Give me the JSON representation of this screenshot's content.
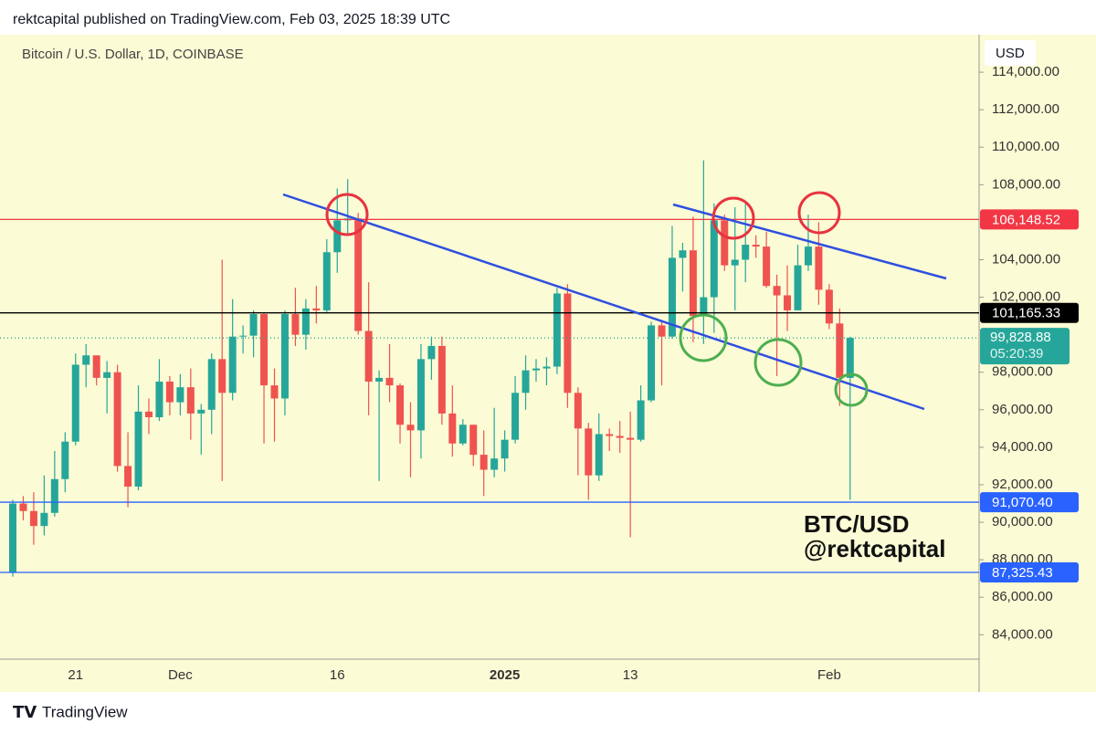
{
  "header": "rektcapital published on TradingView.com, Feb 03, 2025 18:39 UTC",
  "footer": "TradingView",
  "chart_data": {
    "type": "candlestick",
    "title": "Bitcoin / U.S. Dollar, 1D, COINBASE",
    "currency": "USD",
    "annotations": [
      "BTC/USD",
      "@rektcapital"
    ],
    "up_color": "#26a69a",
    "down_color": "#ef5350",
    "categories": [
      null,
      null,
      null,
      null,
      null,
      null,
      "21",
      null,
      null,
      null,
      null,
      null,
      null,
      null,
      null,
      null,
      "Dec",
      null,
      null,
      null,
      null,
      null,
      null,
      null,
      null,
      null,
      null,
      null,
      null,
      null,
      null,
      "16",
      null,
      null,
      null,
      null,
      null,
      null,
      null,
      null,
      null,
      null,
      null,
      null,
      null,
      null,
      null,
      "2025",
      null,
      null,
      null,
      null,
      null,
      null,
      null,
      null,
      null,
      null,
      null,
      "13",
      null,
      null,
      null,
      null,
      null,
      null,
      null,
      null,
      null,
      null,
      null,
      null,
      null,
      null,
      null,
      null,
      null,
      null,
      "Feb",
      null,
      null
    ],
    "open": [
      87300,
      91000,
      90600,
      89800,
      90500,
      92300,
      94300,
      98400,
      98900,
      97700,
      98000,
      93000,
      91900,
      95900,
      95600,
      97500,
      96400,
      97200,
      95800,
      96000,
      98700,
      96900,
      99900,
      99950,
      101100,
      97300,
      96600,
      101100,
      100000,
      101400,
      101300,
      104400,
      106100,
      106200,
      100200,
      97500,
      97700,
      97300,
      95200,
      94900,
      98700,
      99400,
      95800,
      94200,
      95200,
      93600,
      92800,
      93400,
      94400,
      96900,
      98100,
      98200,
      98300,
      102200,
      96900,
      95000,
      92500,
      94700,
      94600,
      94500,
      94400,
      96500,
      100500,
      99900,
      104100,
      104500,
      101000,
      102000,
      106100,
      103700,
      104000,
      104800,
      104700,
      102600,
      102100,
      101300,
      103700,
      104700,
      102400,
      100600,
      97700
    ],
    "high": [
      91200,
      91400,
      91600,
      92500,
      93800,
      94800,
      99000,
      99500,
      98900,
      98600,
      98400,
      94800,
      97300,
      96600,
      98700,
      97800,
      97900,
      98200,
      96300,
      99000,
      104000,
      101900,
      100500,
      101300,
      101200,
      98200,
      101300,
      102500,
      101900,
      102600,
      105100,
      107800,
      108300,
      106500,
      102800,
      98100,
      99500,
      97400,
      96400,
      99500,
      99900,
      99900,
      97300,
      95500,
      95200,
      94900,
      96100,
      94900,
      97800,
      98900,
      98700,
      98800,
      102500,
      102700,
      97200,
      95300,
      95800,
      95000,
      95400,
      95900,
      97300,
      100700,
      100800,
      105800,
      104900,
      106300,
      109300,
      107000,
      106400,
      106800,
      107000,
      105300,
      105500,
      103200,
      103700,
      104800,
      106400,
      106000,
      102700,
      101400,
      99900
    ],
    "low": [
      87100,
      90100,
      88800,
      89300,
      90300,
      91600,
      94100,
      97200,
      97300,
      95800,
      92700,
      90800,
      91700,
      94700,
      95400,
      95700,
      95700,
      94400,
      93600,
      94700,
      92200,
      96500,
      99000,
      98800,
      94200,
      94300,
      95700,
      99400,
      99200,
      100600,
      101200,
      103300,
      105300,
      100000,
      95700,
      92200,
      96400,
      94200,
      92400,
      93400,
      97600,
      95200,
      93500,
      94100,
      93000,
      91400,
      92400,
      92700,
      94200,
      96000,
      97500,
      97300,
      97900,
      96100,
      92500,
      91200,
      92200,
      93800,
      93700,
      89200,
      94300,
      96400,
      97300,
      99800,
      102300,
      99600,
      99500,
      100100,
      103400,
      101300,
      102800,
      104100,
      102500,
      97800,
      100200,
      101300,
      103400,
      101600,
      100300,
      96200,
      91200
    ],
    "close": [
      91000,
      90600,
      89800,
      90500,
      92300,
      94300,
      98400,
      98900,
      97700,
      98000,
      93000,
      91900,
      95900,
      95600,
      97500,
      96400,
      97200,
      95800,
      96000,
      98700,
      96900,
      99900,
      99950,
      101100,
      97300,
      96600,
      101100,
      100000,
      101400,
      101300,
      104400,
      106100,
      106200,
      100200,
      97500,
      97700,
      97300,
      95200,
      94900,
      98700,
      99400,
      95800,
      94200,
      95200,
      93600,
      92800,
      93400,
      94400,
      96900,
      98100,
      98200,
      98300,
      102200,
      96900,
      95000,
      92500,
      94700,
      94600,
      94500,
      94400,
      96500,
      100500,
      99900,
      104100,
      104500,
      101000,
      102000,
      106100,
      103700,
      104000,
      104800,
      104700,
      102600,
      102100,
      101300,
      103700,
      104700,
      102400,
      100600,
      97700,
      99830
    ],
    "ylim": [
      82700,
      116000
    ],
    "yticks": [
      {
        "value": 84000,
        "label": "84,000.00"
      },
      {
        "value": 86000,
        "label": "86,000.00"
      },
      {
        "value": 88000,
        "label": "88,000.00"
      },
      {
        "value": 90000,
        "label": "90,000.00"
      },
      {
        "value": 92000,
        "label": "92,000.00"
      },
      {
        "value": 94000,
        "label": "94,000.00"
      },
      {
        "value": 96000,
        "label": "96,000.00"
      },
      {
        "value": 98000,
        "label": "98,000.00"
      },
      {
        "value": 102000,
        "label": "102,000.00"
      },
      {
        "value": 104000,
        "label": "104,000.00"
      },
      {
        "value": 108000,
        "label": "108,000.00"
      },
      {
        "value": 110000,
        "label": "110,000.00"
      },
      {
        "value": 112000,
        "label": "112,000.00"
      },
      {
        "value": 114000,
        "label": "114,000.00"
      }
    ],
    "levels": [
      {
        "value": 106148.52,
        "label": "106,148.52",
        "color": "#f23645"
      },
      {
        "value": 101165.33,
        "label": "101,165.33",
        "color": "#000000"
      },
      {
        "value": 91070.4,
        "label": "91,070.40",
        "color": "#2962ff"
      },
      {
        "value": 87325.43,
        "label": "87,325.43",
        "color": "#2962ff"
      }
    ],
    "last_price": {
      "value": 99828.88,
      "label": "99,828.88",
      "countdown": "05:20:39",
      "color": "#26a69a"
    }
  }
}
